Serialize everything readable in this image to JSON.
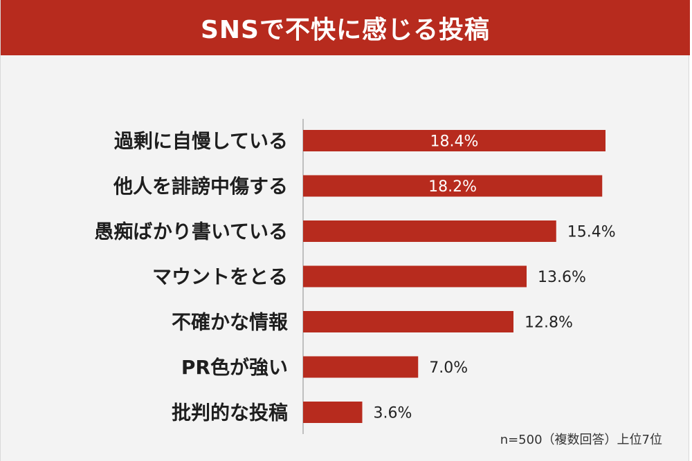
{
  "title": "SNSで不快に感じる投稿",
  "note": "n=500（複数回答）上位7位",
  "colors": {
    "accent": "#b72b1e",
    "bar": "#b72b1e",
    "background": "#f3f3f3",
    "label_inside": "#ffffff",
    "label_outside": "#222222"
  },
  "chart_data": {
    "type": "bar",
    "orientation": "horizontal",
    "title": "SNSで不快に感じる投稿",
    "categories": [
      "過剰に自慢している",
      "他人を誹謗中傷する",
      "愚痴ばかり書いている",
      "マウントをとる",
      "不確かな情報",
      "PR色が強い",
      "批判的な投稿"
    ],
    "values": [
      18.4,
      18.2,
      15.4,
      13.6,
      12.8,
      7.0,
      3.6
    ],
    "value_labels": [
      "18.4%",
      "18.2%",
      "15.4%",
      "13.6%",
      "12.8%",
      "7.0%",
      "3.6%"
    ],
    "unit": "%",
    "xlim": [
      0,
      20
    ],
    "grid": false,
    "legend": "none"
  }
}
